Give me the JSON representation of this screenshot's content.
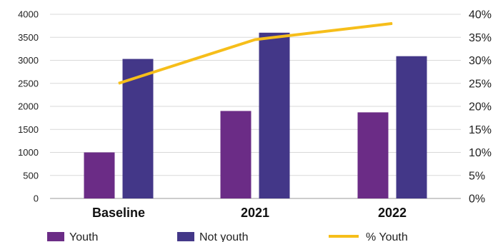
{
  "chart_data": {
    "type": "bar",
    "categories": [
      "Baseline",
      "2021",
      "2022"
    ],
    "series": [
      {
        "name": "Youth",
        "kind": "bar",
        "axis": "left",
        "color": "#6b2c86",
        "values": [
          1000,
          1900,
          1870
        ]
      },
      {
        "name": "Not youth",
        "kind": "bar",
        "axis": "left",
        "color": "#433788",
        "values": [
          3030,
          3600,
          3090
        ]
      },
      {
        "name": "% Youth",
        "kind": "line",
        "axis": "right",
        "color": "#f6be1a",
        "values": [
          25,
          34.5,
          38
        ]
      }
    ],
    "y_left": {
      "min": 0,
      "max": 4000,
      "ticks": [
        "0",
        "500",
        "1000",
        "1500",
        "2000",
        "2500",
        "3000",
        "3500",
        "4000"
      ]
    },
    "y_right": {
      "min": 0,
      "max": 40,
      "ticks": [
        "0%",
        "5%",
        "10%",
        "15%",
        "20%",
        "25%",
        "30%",
        "35%",
        "40%"
      ]
    },
    "grid": true,
    "legend_position": "bottom"
  }
}
